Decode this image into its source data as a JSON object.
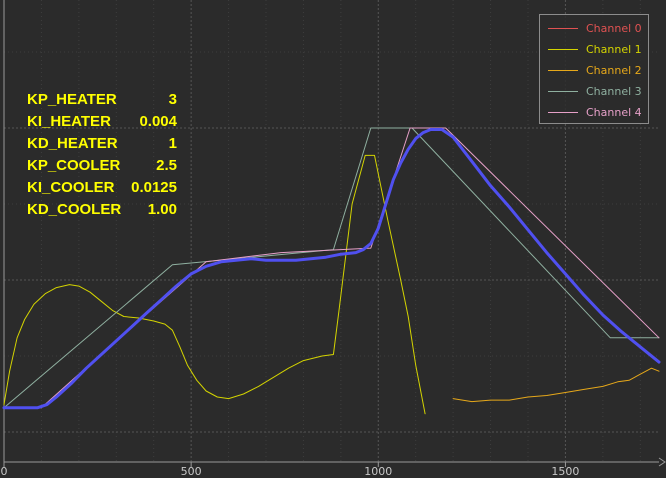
{
  "chart_data": {
    "type": "line",
    "title": "",
    "xlabel": "",
    "ylabel": "",
    "xlim": [
      0,
      1750
    ],
    "ylim": [
      0,
      100
    ],
    "x_ticks": [
      0,
      500,
      1000,
      1500
    ],
    "x_tick_labels": [
      "0",
      "500",
      "1000",
      "1500"
    ],
    "grid": true,
    "legend_position": "top-right",
    "series": [
      {
        "name": "Channel 0",
        "color": "#e05252",
        "width": 1,
        "points": []
      },
      {
        "name": "Channel 1",
        "color": "#d4d400",
        "width": 1,
        "points": [
          [
            0,
            9
          ],
          [
            15,
            20
          ],
          [
            35,
            31
          ],
          [
            55,
            37
          ],
          [
            80,
            42
          ],
          [
            110,
            45.5
          ],
          [
            140,
            47.5
          ],
          [
            175,
            48.5
          ],
          [
            200,
            48
          ],
          [
            230,
            46
          ],
          [
            260,
            43
          ],
          [
            290,
            40
          ],
          [
            320,
            38
          ],
          [
            360,
            37.5
          ],
          [
            400,
            36.5
          ],
          [
            430,
            35.5
          ],
          [
            450,
            33.5
          ],
          [
            470,
            28
          ],
          [
            490,
            22
          ],
          [
            515,
            17
          ],
          [
            540,
            13.5
          ],
          [
            570,
            11.5
          ],
          [
            600,
            11
          ],
          [
            640,
            12.5
          ],
          [
            680,
            15
          ],
          [
            720,
            18
          ],
          [
            760,
            21
          ],
          [
            800,
            23.5
          ],
          [
            850,
            25
          ],
          [
            880,
            25.5
          ],
          [
            895,
            40
          ],
          [
            915,
            60
          ],
          [
            930,
            75
          ],
          [
            965,
            91
          ],
          [
            990,
            91
          ],
          [
            1025,
            70
          ],
          [
            1060,
            50
          ],
          [
            1080,
            38
          ],
          [
            1100,
            22
          ],
          [
            1125,
            6
          ]
        ]
      },
      {
        "name": "Channel 2",
        "color": "#e6a81a",
        "width": 1,
        "points": [
          [
            1200,
            11
          ],
          [
            1250,
            10
          ],
          [
            1300,
            10.5
          ],
          [
            1350,
            10.5
          ],
          [
            1400,
            11.5
          ],
          [
            1450,
            12
          ],
          [
            1500,
            13
          ],
          [
            1550,
            14
          ],
          [
            1600,
            15
          ],
          [
            1640,
            16.5
          ],
          [
            1670,
            17
          ],
          [
            1700,
            19
          ],
          [
            1730,
            21
          ],
          [
            1750,
            20
          ]
        ]
      },
      {
        "name": "Channel 3",
        "color": "#8fb0a0",
        "width": 1,
        "points": [
          [
            0,
            8
          ],
          [
            450,
            55
          ],
          [
            880,
            60
          ],
          [
            980,
            100
          ],
          [
            1090,
            100
          ],
          [
            1620,
            31
          ],
          [
            1750,
            31
          ]
        ]
      },
      {
        "name": "Channel 4",
        "color": "#e6a0c8",
        "width": 1,
        "points": [
          [
            0,
            8
          ],
          [
            100,
            8
          ],
          [
            300,
            30
          ],
          [
            540,
            56
          ],
          [
            740,
            59
          ],
          [
            980,
            60.5
          ],
          [
            1085,
            100
          ],
          [
            1180,
            100
          ],
          [
            1750,
            31
          ]
        ]
      },
      {
        "name": "",
        "color": "#5050f0",
        "width": 3,
        "points": [
          [
            0,
            8
          ],
          [
            30,
            8
          ],
          [
            60,
            8
          ],
          [
            90,
            8
          ],
          [
            115,
            9
          ],
          [
            140,
            11.5
          ],
          [
            180,
            16
          ],
          [
            220,
            21
          ],
          [
            260,
            25.5
          ],
          [
            300,
            30
          ],
          [
            340,
            34.5
          ],
          [
            380,
            39
          ],
          [
            420,
            43.5
          ],
          [
            460,
            48
          ],
          [
            500,
            52
          ],
          [
            540,
            54.5
          ],
          [
            580,
            56
          ],
          [
            620,
            56.5
          ],
          [
            660,
            57
          ],
          [
            700,
            56.5
          ],
          [
            740,
            56.5
          ],
          [
            780,
            56.5
          ],
          [
            820,
            57
          ],
          [
            860,
            57.5
          ],
          [
            900,
            58.5
          ],
          [
            940,
            59
          ],
          [
            960,
            60
          ],
          [
            980,
            62
          ],
          [
            1000,
            67
          ],
          [
            1020,
            75
          ],
          [
            1040,
            83
          ],
          [
            1060,
            88.5
          ],
          [
            1080,
            93
          ],
          [
            1100,
            96.5
          ],
          [
            1120,
            98.5
          ],
          [
            1140,
            99.5
          ],
          [
            1170,
            99.5
          ],
          [
            1200,
            97
          ],
          [
            1250,
            89
          ],
          [
            1300,
            81
          ],
          [
            1350,
            74
          ],
          [
            1400,
            66.5
          ],
          [
            1450,
            59
          ],
          [
            1500,
            52
          ],
          [
            1550,
            45
          ],
          [
            1600,
            38.5
          ],
          [
            1650,
            33
          ],
          [
            1700,
            28
          ],
          [
            1750,
            23
          ]
        ]
      }
    ]
  },
  "annotations": [
    {
      "name": "KP_HEATER",
      "value": "3"
    },
    {
      "name": "KI_HEATER",
      "value": "0.004"
    },
    {
      "name": "KD_HEATER",
      "value": "1"
    },
    {
      "name": "KP_COOLER",
      "value": "2.5"
    },
    {
      "name": "KI_COOLER",
      "value": "0.0125"
    },
    {
      "name": "KD_COOLER",
      "value": "1.00"
    }
  ],
  "legend": [
    {
      "label": "Channel 0",
      "color": "#e05252"
    },
    {
      "label": "Channel 1",
      "color": "#d4d400"
    },
    {
      "label": "Channel 2",
      "color": "#e6a81a"
    },
    {
      "label": "Channel 3",
      "color": "#8fb0a0"
    },
    {
      "label": "Channel 4",
      "color": "#e6a0c8"
    }
  ]
}
